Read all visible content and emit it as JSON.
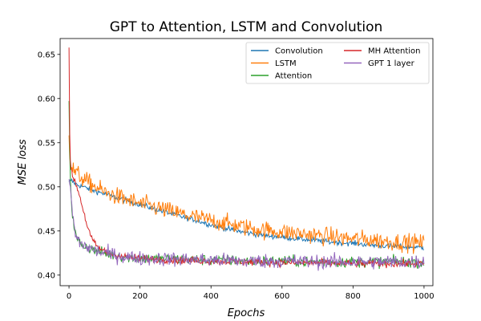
{
  "chart_data": {
    "type": "line",
    "title": "GPT to Attention, LSTM and Convolution",
    "xlabel": "Epochs",
    "ylabel": "MSE loss",
    "xlim": [
      -25,
      1025
    ],
    "ylim": [
      0.388,
      0.668
    ],
    "xticks": [
      0,
      200,
      400,
      600,
      800,
      1000
    ],
    "yticks": [
      0.4,
      0.45,
      0.5,
      0.55,
      0.6,
      0.65
    ],
    "xtick_labels": [
      "0",
      "200",
      "400",
      "600",
      "800",
      "1000"
    ],
    "ytick_labels": [
      "0.40",
      "0.45",
      "0.50",
      "0.55",
      "0.60",
      "0.65"
    ],
    "grid": false,
    "legend_position": "top-right",
    "series": [
      {
        "name": "Convolution",
        "color": "#1f77b4",
        "noise": 0.003,
        "x": [
          0,
          2,
          5,
          10,
          20,
          40,
          60,
          100,
          150,
          200,
          250,
          300,
          350,
          400,
          450,
          500,
          550,
          600,
          650,
          700,
          750,
          800,
          850,
          900,
          950,
          1000
        ],
        "y": [
          0.505,
          0.507,
          0.508,
          0.506,
          0.503,
          0.5,
          0.497,
          0.492,
          0.486,
          0.48,
          0.474,
          0.468,
          0.463,
          0.457,
          0.452,
          0.448,
          0.445,
          0.443,
          0.441,
          0.439,
          0.437,
          0.436,
          0.434,
          0.433,
          0.432,
          0.431
        ]
      },
      {
        "name": "LSTM",
        "color": "#ff7f0e",
        "noise": 0.01,
        "x": [
          0,
          2,
          5,
          10,
          15,
          20,
          30,
          40,
          50,
          75,
          100,
          150,
          200,
          250,
          300,
          350,
          400,
          450,
          500,
          550,
          600,
          650,
          700,
          750,
          800,
          850,
          900,
          950,
          1000
        ],
        "y": [
          0.56,
          0.535,
          0.525,
          0.52,
          0.518,
          0.516,
          0.512,
          0.509,
          0.506,
          0.5,
          0.494,
          0.487,
          0.481,
          0.476,
          0.471,
          0.466,
          0.462,
          0.458,
          0.454,
          0.451,
          0.449,
          0.447,
          0.445,
          0.443,
          0.441,
          0.44,
          0.438,
          0.437,
          0.436
        ]
      },
      {
        "name": "Attention",
        "color": "#2ca02c",
        "noise": 0.006,
        "x": [
          0,
          2,
          4,
          6,
          8,
          10,
          15,
          20,
          30,
          40,
          60,
          80,
          100,
          150,
          200,
          300,
          400,
          500,
          600,
          700,
          800,
          900,
          1000
        ],
        "y": [
          0.598,
          0.54,
          0.51,
          0.49,
          0.478,
          0.468,
          0.453,
          0.443,
          0.437,
          0.434,
          0.43,
          0.427,
          0.425,
          0.421,
          0.419,
          0.418,
          0.417,
          0.416,
          0.416,
          0.415,
          0.415,
          0.415,
          0.415
        ]
      },
      {
        "name": "MH Attention",
        "color": "#d62728",
        "noise": 0.004,
        "x": [
          0,
          1,
          2,
          3,
          4,
          6,
          8,
          10,
          15,
          20,
          30,
          40,
          50,
          60,
          70,
          80,
          100,
          120,
          150,
          200,
          300,
          400,
          500,
          600,
          700,
          800,
          900,
          1000
        ],
        "y": [
          0.658,
          0.61,
          0.56,
          0.535,
          0.528,
          0.52,
          0.516,
          0.513,
          0.508,
          0.503,
          0.49,
          0.474,
          0.458,
          0.445,
          0.437,
          0.432,
          0.427,
          0.424,
          0.421,
          0.419,
          0.417,
          0.416,
          0.415,
          0.414,
          0.414,
          0.413,
          0.413,
          0.413
        ]
      },
      {
        "name": "GPT 1 layer",
        "color": "#9467bd",
        "noise": 0.008,
        "x": [
          0,
          2,
          4,
          6,
          8,
          10,
          15,
          20,
          30,
          40,
          60,
          80,
          100,
          150,
          200,
          300,
          400,
          500,
          600,
          700,
          800,
          900,
          1000
        ],
        "y": [
          0.506,
          0.504,
          0.5,
          0.49,
          0.478,
          0.468,
          0.453,
          0.443,
          0.437,
          0.434,
          0.43,
          0.427,
          0.425,
          0.421,
          0.419,
          0.418,
          0.417,
          0.416,
          0.416,
          0.415,
          0.415,
          0.415,
          0.415
        ]
      }
    ]
  }
}
